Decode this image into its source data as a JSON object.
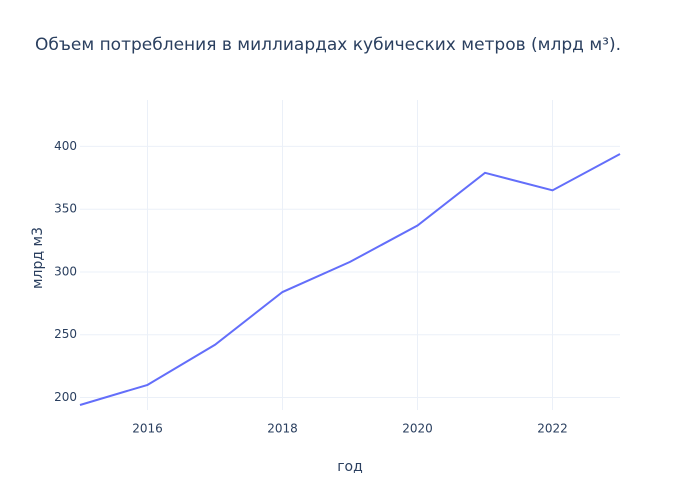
{
  "chart_data": {
    "type": "line",
    "title": "Объем потребления в миллиардах кубических метров (млрд м³).",
    "x_label": "год",
    "y_label": "млрд м3",
    "x": [
      2015,
      2016,
      2017,
      2018,
      2019,
      2020,
      2021,
      2022,
      2023
    ],
    "series": [
      {
        "name": "млрд м3",
        "color": "#636efa",
        "values": [
          194,
          210,
          242,
          284,
          308,
          337,
          379,
          365,
          394
        ]
      }
    ],
    "xlim": [
      2015,
      2023
    ],
    "xticks": [
      2016,
      2018,
      2020,
      2022
    ],
    "ylim": [
      190,
      437
    ],
    "yticks": [
      200,
      250,
      300,
      350,
      400
    ],
    "grid": true
  }
}
